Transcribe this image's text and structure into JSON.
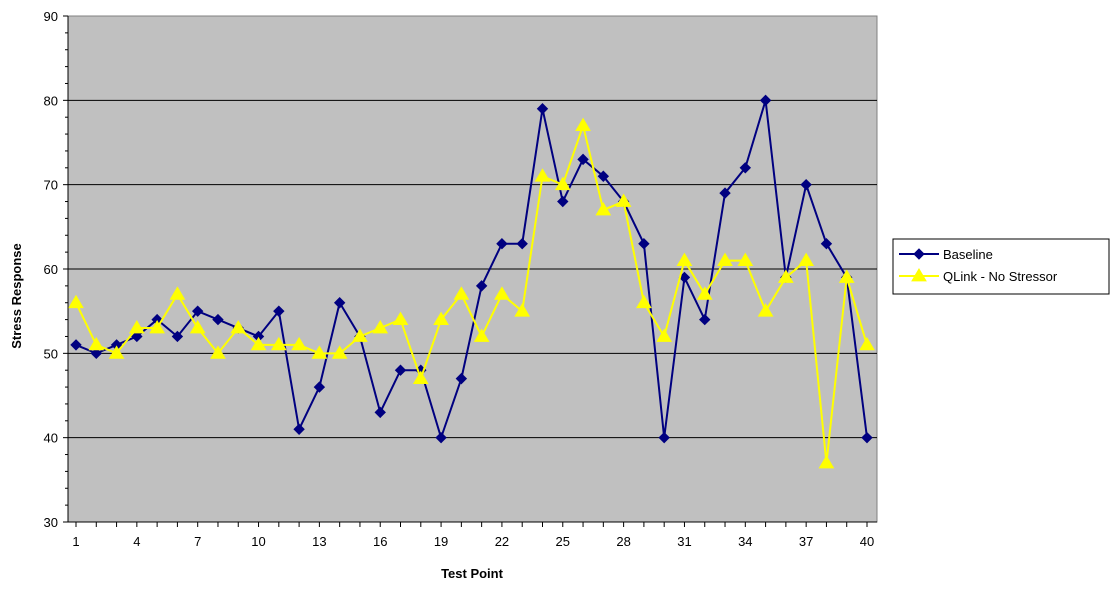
{
  "chart_data": {
    "type": "line",
    "title": "",
    "xlabel": "Test Point",
    "ylabel": "Stress Response",
    "ylim": [
      30,
      90
    ],
    "yticks": [
      30,
      40,
      50,
      60,
      70,
      80,
      90
    ],
    "x": [
      1,
      2,
      3,
      4,
      5,
      6,
      7,
      8,
      9,
      10,
      11,
      12,
      13,
      14,
      15,
      16,
      17,
      18,
      19,
      20,
      21,
      22,
      23,
      24,
      25,
      26,
      27,
      28,
      29,
      30,
      31,
      32,
      33,
      34,
      35,
      36,
      37,
      38,
      39,
      40
    ],
    "xtick_labels": [
      1,
      4,
      7,
      10,
      13,
      16,
      19,
      22,
      25,
      28,
      31,
      34,
      37,
      40
    ],
    "grid": "horizontal",
    "plot_background": "#c0c0c0",
    "legend_position": "right",
    "series": [
      {
        "name": "Baseline",
        "color": "#000080",
        "marker": "diamond",
        "values": [
          51,
          50,
          51,
          52,
          54,
          52,
          55,
          54,
          53,
          52,
          55,
          41,
          46,
          56,
          52,
          43,
          48,
          48,
          40,
          47,
          58,
          63,
          63,
          79,
          68,
          73,
          71,
          68,
          63,
          40,
          59,
          54,
          69,
          72,
          80,
          59,
          70,
          63,
          59,
          40
        ]
      },
      {
        "name": "QLink - No Stressor",
        "color": "#ffff00",
        "marker": "triangle",
        "values": [
          56,
          51,
          50,
          53,
          53,
          57,
          53,
          50,
          53,
          51,
          51,
          51,
          50,
          50,
          52,
          53,
          54,
          47,
          54,
          57,
          52,
          57,
          55,
          71,
          70,
          77,
          67,
          68,
          56,
          52,
          61,
          57,
          61,
          61,
          55,
          59,
          61,
          37,
          59,
          51
        ]
      }
    ]
  }
}
